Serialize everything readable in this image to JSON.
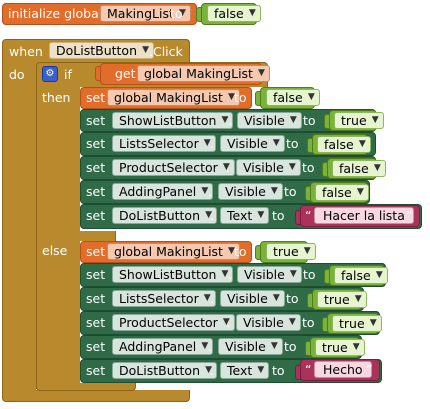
{
  "init": {
    "keyword": "initialize global",
    "var_name": "MakingList",
    "to": "to",
    "value": "false"
  },
  "event": {
    "when": "when",
    "component": "DoListButton",
    "event_name": ".Click",
    "do": "do"
  },
  "ifblock": {
    "if": "if",
    "then": "then",
    "else": "else",
    "get_label": "get",
    "get_var": "global MakingList"
  },
  "setters": {
    "set": "set",
    "to": "to",
    "dot": ".",
    "var_label": "global MakingList"
  },
  "then_rows": [
    {
      "component": "ShowListButton",
      "property": "Visible",
      "value": "true"
    },
    {
      "component": "ListsSelector",
      "property": "Visible",
      "value": "false"
    },
    {
      "component": "ProductSelector",
      "property": "Visible",
      "value": "false"
    },
    {
      "component": "AddingPanel",
      "property": "Visible",
      "value": "false"
    },
    {
      "component": "DoListButton",
      "property": "Text",
      "value": "Hacer la lista"
    }
  ],
  "then_var_value": "false",
  "else_var_value": "true",
  "else_rows": [
    {
      "component": "ShowListButton",
      "property": "Visible",
      "value": "false"
    },
    {
      "component": "ListsSelector",
      "property": "Visible",
      "value": "true"
    },
    {
      "component": "ProductSelector",
      "property": "Visible",
      "value": "true"
    },
    {
      "component": "AddingPanel",
      "property": "Visible",
      "value": "true"
    },
    {
      "component": "DoListButton",
      "property": "Text",
      "value": "Hecho"
    }
  ],
  "icons": {
    "dropdown": "dropdown-arrow-icon",
    "mutator": "gear-icon"
  },
  "colors": {
    "logic": "#7ab23b",
    "variable": "#e26c2a",
    "component": "#2f6b47",
    "control": "#b9892d",
    "text": "#a9335b"
  }
}
